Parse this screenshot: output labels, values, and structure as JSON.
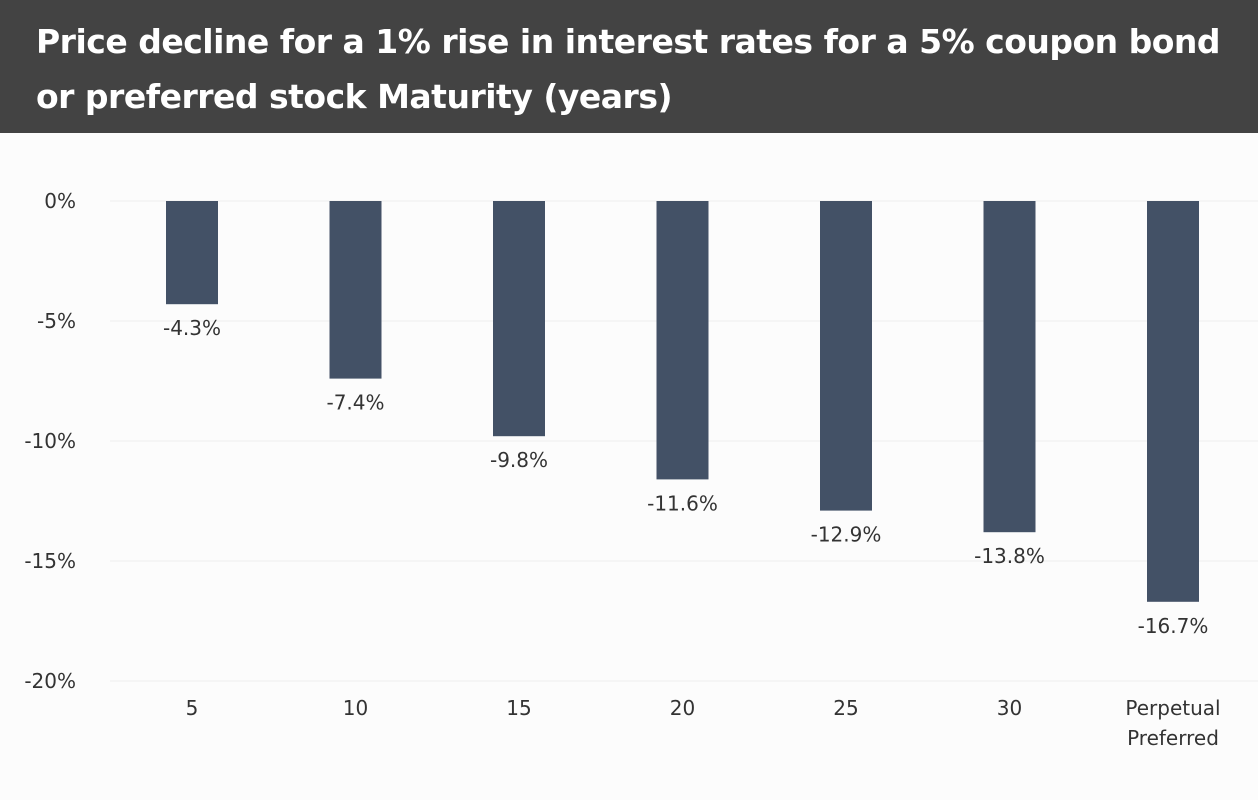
{
  "header": {
    "title_line1": "Price decline for a 1% rise in interest rates for a 5% coupon bond",
    "title_line2": "or preferred stock Maturity (years)"
  },
  "colors": {
    "header_bg": "#434343",
    "bar": "#435166",
    "grid": "#eeeeee",
    "text": "#333333"
  },
  "chart_data": {
    "type": "bar",
    "title": "Price decline for a 1% rise in interest rates for a 5% coupon bond or preferred stock Maturity (years)",
    "categories": [
      [
        "5"
      ],
      [
        "10"
      ],
      [
        "15"
      ],
      [
        "20"
      ],
      [
        "25"
      ],
      [
        "30"
      ],
      [
        "Perpetual",
        "Preferred"
      ]
    ],
    "values": [
      -4.3,
      -7.4,
      -9.8,
      -11.6,
      -12.9,
      -13.8,
      -16.7
    ],
    "value_labels": [
      "-4.3%",
      "-7.4%",
      "-9.8%",
      "-11.6%",
      "-12.9%",
      "-13.8%",
      "-16.7%"
    ],
    "ylim": [
      -20,
      0
    ],
    "yticks": [
      0,
      -5,
      -10,
      -15,
      -20
    ],
    "ytick_labels": [
      "0%",
      "-5%",
      "-10%",
      "-15%",
      "-20%"
    ],
    "grid": true,
    "legend": "none"
  }
}
